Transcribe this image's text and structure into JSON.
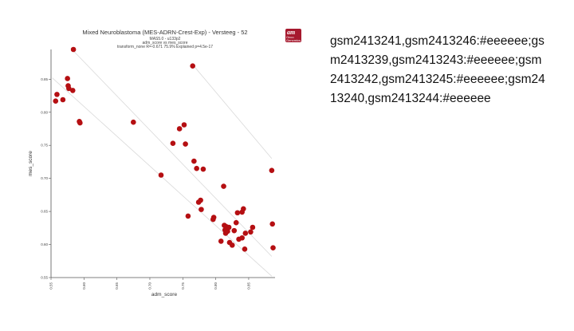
{
  "chart_data": {
    "type": "scatter",
    "title": "Mixed Neuroblastoma (MES-ADRN-Crest-Exp) - Versteeg - 52",
    "subtitle_lines": [
      "MAS5.0 - u133p2",
      "adm_score vs mes_score",
      "transform_none R=-0.671 75.9% Explained p=4.5e-17"
    ],
    "xlabel": "adm_score",
    "ylabel": "mes_score",
    "xlim": [
      0.55,
      0.89
    ],
    "ylim": [
      0.55,
      0.895
    ],
    "x_ticks": [
      "0.55",
      "0.60",
      "0.65",
      "0.70",
      "0.75",
      "0.80",
      "0.85"
    ],
    "y_ticks": [
      "0.55",
      "0.60",
      "0.65",
      "0.70",
      "0.75",
      "0.80",
      "0.85"
    ],
    "point_color": "#b50f12",
    "line_color": "#d9d9d9",
    "reference_lines": [
      {
        "x1": 0.58,
        "y1": 0.897,
        "x2": 0.885,
        "y2": 0.582
      },
      {
        "x1": 0.552,
        "y1": 0.852,
        "x2": 0.885,
        "y2": 0.552
      },
      {
        "x1": 0.765,
        "y1": 0.872,
        "x2": 0.885,
        "y2": 0.73
      }
    ],
    "points": [
      {
        "x": 0.584,
        "y": 0.895
      },
      {
        "x": 0.557,
        "y": 0.817
      },
      {
        "x": 0.559,
        "y": 0.827
      },
      {
        "x": 0.568,
        "y": 0.819
      },
      {
        "x": 0.575,
        "y": 0.851
      },
      {
        "x": 0.576,
        "y": 0.84
      },
      {
        "x": 0.577,
        "y": 0.836
      },
      {
        "x": 0.583,
        "y": 0.833
      },
      {
        "x": 0.593,
        "y": 0.786
      },
      {
        "x": 0.594,
        "y": 0.784
      },
      {
        "x": 0.675,
        "y": 0.785
      },
      {
        "x": 0.717,
        "y": 0.705
      },
      {
        "x": 0.735,
        "y": 0.753
      },
      {
        "x": 0.745,
        "y": 0.775
      },
      {
        "x": 0.752,
        "y": 0.781
      },
      {
        "x": 0.754,
        "y": 0.752
      },
      {
        "x": 0.758,
        "y": 0.643
      },
      {
        "x": 0.765,
        "y": 0.87
      },
      {
        "x": 0.767,
        "y": 0.726
      },
      {
        "x": 0.771,
        "y": 0.715
      },
      {
        "x": 0.774,
        "y": 0.664
      },
      {
        "x": 0.777,
        "y": 0.667
      },
      {
        "x": 0.778,
        "y": 0.653
      },
      {
        "x": 0.781,
        "y": 0.714
      },
      {
        "x": 0.796,
        "y": 0.638
      },
      {
        "x": 0.797,
        "y": 0.641
      },
      {
        "x": 0.808,
        "y": 0.605
      },
      {
        "x": 0.812,
        "y": 0.688
      },
      {
        "x": 0.813,
        "y": 0.629
      },
      {
        "x": 0.814,
        "y": 0.622
      },
      {
        "x": 0.815,
        "y": 0.617
      },
      {
        "x": 0.816,
        "y": 0.627
      },
      {
        "x": 0.817,
        "y": 0.624
      },
      {
        "x": 0.818,
        "y": 0.62
      },
      {
        "x": 0.82,
        "y": 0.626
      },
      {
        "x": 0.821,
        "y": 0.603
      },
      {
        "x": 0.825,
        "y": 0.599
      },
      {
        "x": 0.828,
        "y": 0.621
      },
      {
        "x": 0.831,
        "y": 0.633
      },
      {
        "x": 0.833,
        "y": 0.648
      },
      {
        "x": 0.835,
        "y": 0.608
      },
      {
        "x": 0.84,
        "y": 0.61
      },
      {
        "x": 0.84,
        "y": 0.649
      },
      {
        "x": 0.842,
        "y": 0.654
      },
      {
        "x": 0.844,
        "y": 0.593
      },
      {
        "x": 0.845,
        "y": 0.617
      },
      {
        "x": 0.853,
        "y": 0.619
      },
      {
        "x": 0.856,
        "y": 0.626
      },
      {
        "x": 0.885,
        "y": 0.712
      },
      {
        "x": 0.886,
        "y": 0.631
      },
      {
        "x": 0.887,
        "y": 0.595
      }
    ]
  },
  "logo": {
    "mark": "am",
    "text_line1": "Onco",
    "text_line2": "Genomics"
  },
  "side_text": "gsm2413241,gsm2413246:#eeeeee;gsm2413239,gsm2413243:#eeeeee;gsm2413242,gsm2413245:#eeeeee;gsm2413240,gsm2413244:#eeeeee"
}
